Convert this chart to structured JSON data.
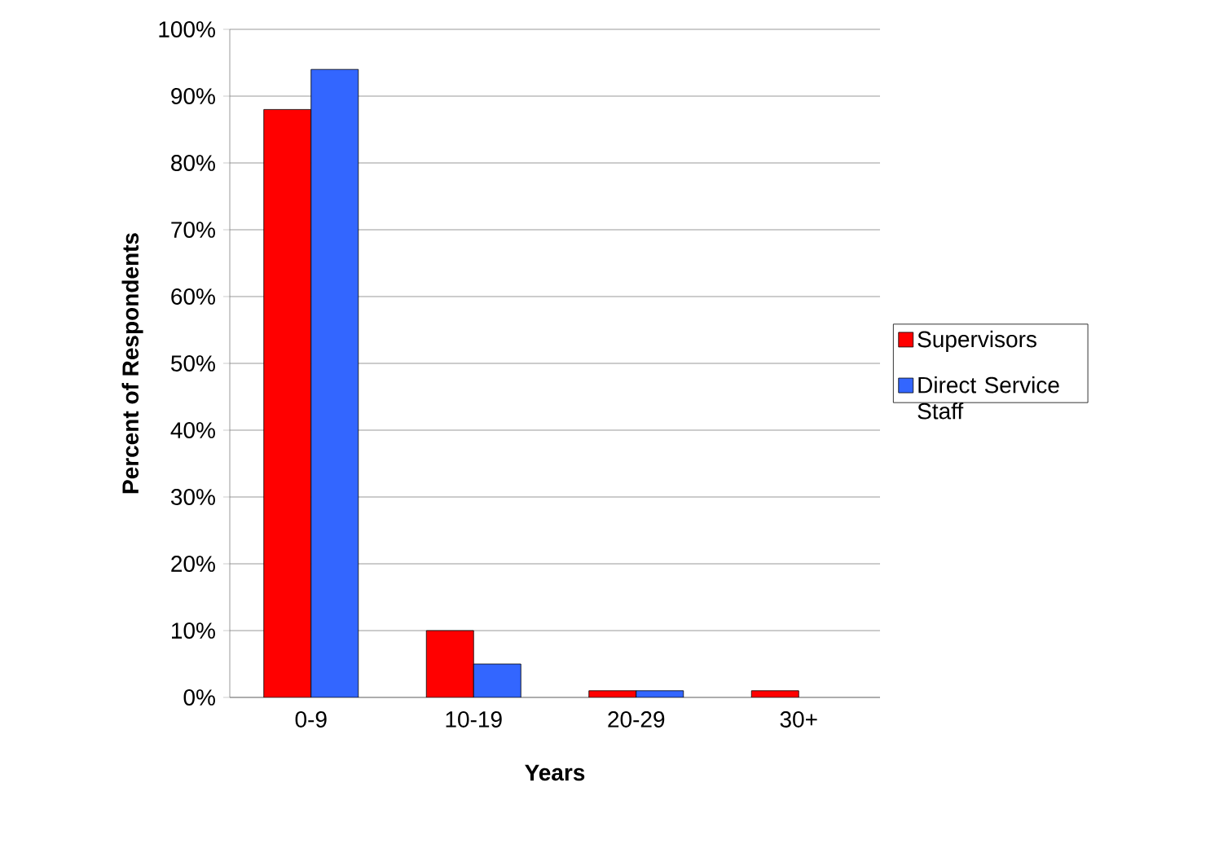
{
  "chart_data": {
    "type": "bar",
    "xlabel": "Years",
    "ylabel": "Percent of Respondents",
    "categories": [
      "0-9",
      "10-19",
      "20-29",
      "30+"
    ],
    "series": [
      {
        "name": "Supervisors",
        "color": "#ff0000",
        "values": [
          88,
          10,
          1,
          1
        ]
      },
      {
        "name": "Direct Service Staff",
        "color": "#3366ff",
        "values": [
          94,
          5,
          1,
          0
        ]
      }
    ],
    "ylim": [
      0,
      100
    ],
    "yticks": [
      {
        "value": 0,
        "label": "0%"
      },
      {
        "value": 10,
        "label": "10%"
      },
      {
        "value": 20,
        "label": "20%"
      },
      {
        "value": 30,
        "label": "30%"
      },
      {
        "value": 40,
        "label": "40%"
      },
      {
        "value": 50,
        "label": "50%"
      },
      {
        "value": 60,
        "label": "60%"
      },
      {
        "value": 70,
        "label": "70%"
      },
      {
        "value": 80,
        "label": "80%"
      },
      {
        "value": 90,
        "label": "90%"
      },
      {
        "value": 100,
        "label": "100%"
      }
    ],
    "grid": "y",
    "legend": "right"
  }
}
